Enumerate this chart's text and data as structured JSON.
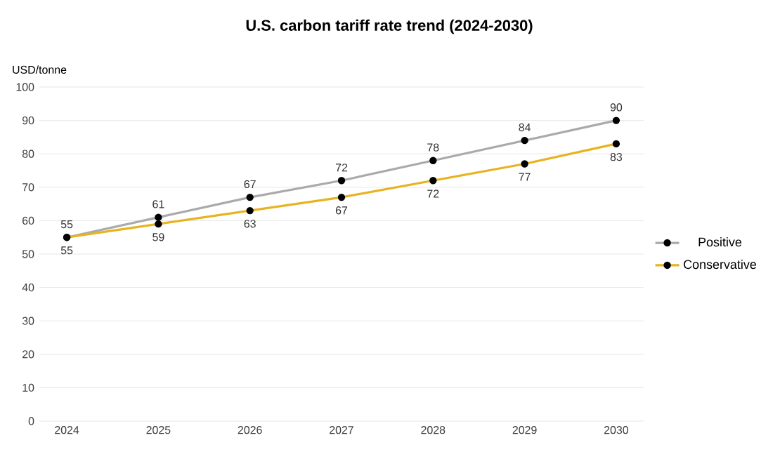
{
  "chart_data": {
    "type": "line",
    "title": "U.S. carbon tariff rate trend (2024-2030)",
    "ylabel": "USD/tonne",
    "categories": [
      "2024",
      "2025",
      "2026",
      "2027",
      "2028",
      "2029",
      "2030"
    ],
    "series": [
      {
        "name": "Positive",
        "color": "#aaaaaa",
        "values": [
          55,
          61,
          67,
          72,
          78,
          84,
          90
        ]
      },
      {
        "name": "Conservative",
        "color": "#e8b320",
        "values": [
          55,
          59,
          63,
          67,
          72,
          77,
          83
        ]
      }
    ],
    "ylim": [
      0,
      100
    ],
    "yticks": [
      0,
      10,
      20,
      30,
      40,
      50,
      60,
      70,
      80,
      90,
      100
    ],
    "grid": "y",
    "legend": "right",
    "marker": "circle",
    "line_style": "solid",
    "data_labels": true
  }
}
